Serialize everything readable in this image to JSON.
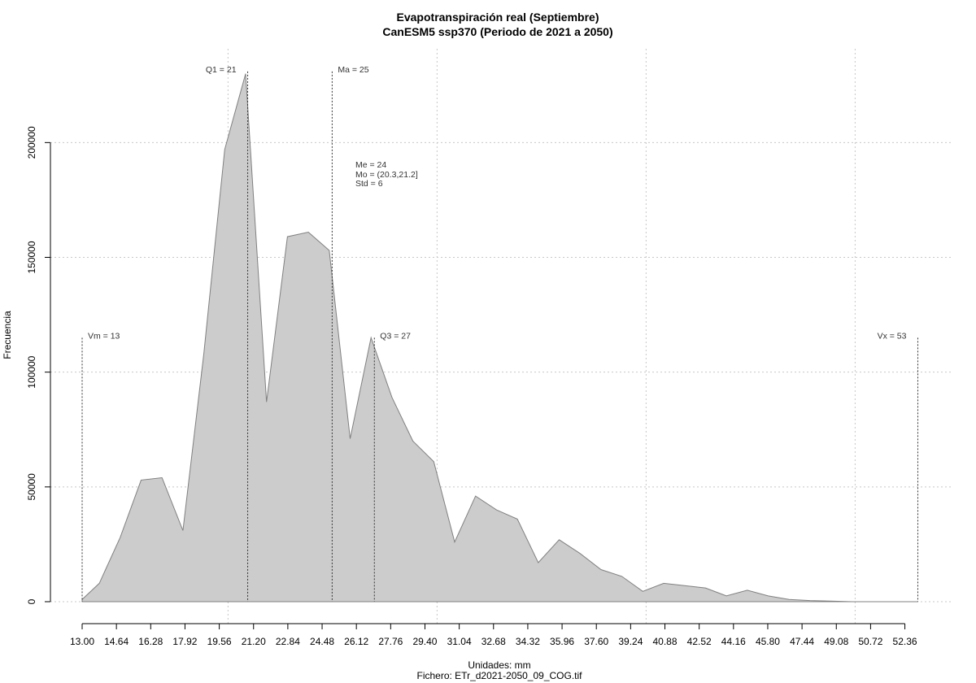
{
  "chart_data": {
    "type": "area",
    "title": "Evapotranspiración real (Septiembre)",
    "subtitle": "CanESM5 ssp370 (Periodo de 2021 a 2050)",
    "xlabel": "Unidades: mm",
    "caption": "Fichero: ETr_d2021-2050_09_COG.tif",
    "ylabel": "Frecuencia",
    "xlim": [
      13.0,
      53.0
    ],
    "ylim": [
      0,
      232000
    ],
    "x_ticks": [
      13.0,
      14.64,
      16.28,
      17.92,
      19.56,
      21.2,
      22.84,
      24.48,
      26.12,
      27.76,
      29.4,
      31.04,
      32.68,
      34.32,
      35.96,
      37.6,
      39.24,
      40.88,
      42.52,
      44.16,
      45.8,
      47.44,
      49.08,
      50.72,
      52.36
    ],
    "x_tick_labels": [
      "13.00",
      "14.64",
      "16.28",
      "17.92",
      "19.56",
      "21.20",
      "22.84",
      "24.48",
      "26.12",
      "27.76",
      "29.40",
      "31.04",
      "32.68",
      "34.32",
      "35.96",
      "37.60",
      "39.24",
      "40.88",
      "42.52",
      "44.16",
      "45.80",
      "47.44",
      "49.08",
      "50.72",
      "52.36"
    ],
    "y_ticks": [
      0,
      50000,
      100000,
      150000,
      200000
    ],
    "y_tick_labels": [
      "0",
      "50000",
      "100000",
      "150000",
      "200000"
    ],
    "x_grid": [
      19.98,
      29.98,
      39.98,
      49.98
    ],
    "grid": true,
    "fill_color": "#cccccc",
    "outline_color": "#808080",
    "x": [
      13.0,
      13.82,
      14.82,
      15.82,
      16.82,
      17.82,
      18.82,
      19.82,
      20.82,
      21.82,
      22.82,
      23.82,
      24.82,
      25.82,
      26.82,
      27.82,
      28.82,
      29.82,
      30.82,
      31.82,
      32.82,
      33.82,
      34.82,
      35.82,
      36.82,
      37.82,
      38.82,
      39.82,
      40.82,
      41.82,
      42.82,
      43.82,
      44.82,
      45.82,
      46.82,
      47.82,
      48.82,
      49.82,
      50.82,
      51.82,
      52.82,
      53.0
    ],
    "values": [
      1000,
      8000,
      28000,
      53000,
      54000,
      31000,
      108000,
      197000,
      230000,
      87000,
      159000,
      161000,
      153000,
      71000,
      115000,
      89000,
      70000,
      61000,
      26000,
      46000,
      40000,
      36000,
      17000,
      27000,
      21000,
      14000,
      11000,
      4500,
      8000,
      7000,
      6000,
      2500,
      5000,
      2500,
      1000,
      500,
      300,
      0,
      0,
      0,
      0,
      0
    ],
    "markers": [
      {
        "label": "Vm = 13",
        "x": 13.0,
        "y_top": 115000,
        "text_side": "right"
      },
      {
        "label": "Q1 = 21",
        "x": 20.92,
        "y_top": 231000,
        "text_side": "left"
      },
      {
        "label": "Ma = 25",
        "x": 24.96,
        "y_top": 231000,
        "text_side": "right"
      },
      {
        "label": "Q3 = 27",
        "x": 26.98,
        "y_top": 115000,
        "text_side": "right"
      },
      {
        "label": "Vx = 53",
        "x": 52.98,
        "y_top": 115000,
        "text_side": "left"
      }
    ],
    "stats": [
      "Me = 24",
      "Mo = (20.3,21.2]",
      "Std = 6"
    ]
  }
}
